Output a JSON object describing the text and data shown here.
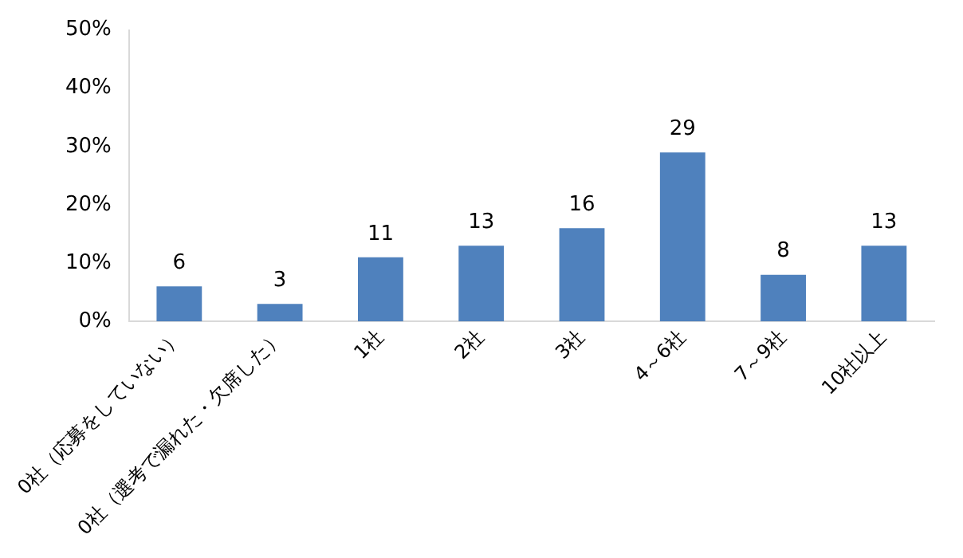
{
  "chart_data": {
    "type": "bar",
    "categories": [
      "0社（応募をしていない）",
      "0社（選考で漏れた・欠席した）",
      "1社",
      "2社",
      "3社",
      "4～6社",
      "7～9社",
      "10社以上"
    ],
    "values": [
      6,
      3,
      11,
      13,
      16,
      29,
      8,
      13
    ],
    "color": "#4f81bd",
    "data_labels": true,
    "ylim": [
      0,
      50
    ],
    "yticks": [
      {
        "value": 0,
        "label": "0%"
      },
      {
        "value": 10,
        "label": "10%"
      },
      {
        "value": 20,
        "label": "20%"
      },
      {
        "value": 30,
        "label": "30%"
      },
      {
        "value": 40,
        "label": "40%"
      },
      {
        "value": 50,
        "label": "50%"
      }
    ],
    "grid": false,
    "legend": false
  }
}
